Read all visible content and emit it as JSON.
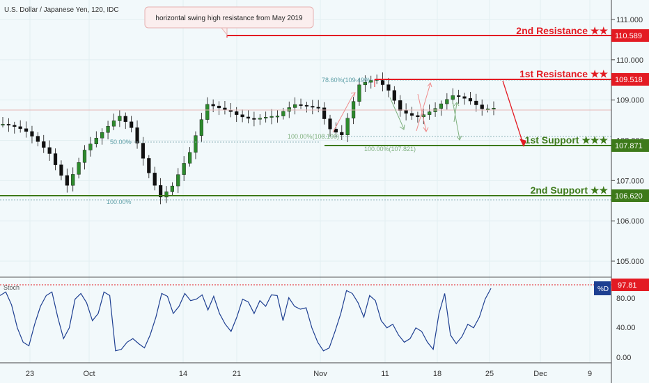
{
  "header": {
    "symbol": "U.S. Dollar / Japanese Yen, 120, IDC"
  },
  "annotation": {
    "text": "horizontal swing high resistance from May 2019"
  },
  "colors": {
    "resistance": "#e31b23",
    "support": "#3d7a1a",
    "candle": "#111111",
    "stoch_line": "#1e3f91",
    "fib": "#5fa0a8"
  },
  "levels": [
    {
      "name": "2nd Resistance ★★",
      "value": "110.589",
      "kind": "resistance"
    },
    {
      "name": "1st Resistance ★★",
      "value": "109.518",
      "kind": "resistance"
    },
    {
      "name": "1st Support ★★★",
      "value": "107.871",
      "kind": "support"
    },
    {
      "name": "2nd Support ★★",
      "value": "106.620",
      "kind": "support"
    }
  ],
  "fib_labels": {
    "f786": "78.60%(109.499)",
    "f50": "50.00%",
    "f100a": "100.00%",
    "f100b": "100.00%(108.100)",
    "f100c": "100.00%(107.821)"
  },
  "stoch": {
    "title": "Stoch",
    "legend": "%D",
    "current": "97.81",
    "yticks": [
      "80.00",
      "40.00",
      "0.00"
    ]
  },
  "chart_data": [
    {
      "type": "candlestick",
      "title": "U.S. Dollar / Japanese Yen, 120, IDC",
      "yticks": [
        "111.000",
        "110.000",
        "109.000",
        "108.000",
        "107.000",
        "106.000",
        "105.000"
      ],
      "ylim": [
        104.6,
        111.5
      ],
      "xlabels": [
        "23",
        "Oct",
        "14",
        "21",
        "Nov",
        "11",
        "18",
        "25",
        "Dec",
        "9"
      ],
      "close_path": [
        [
          0,
          108.4
        ],
        [
          4,
          108.1
        ],
        [
          8,
          107.7
        ],
        [
          11,
          107.0
        ],
        [
          14,
          107.8
        ],
        [
          17,
          108.1
        ],
        [
          20,
          108.5
        ],
        [
          22,
          108.3
        ],
        [
          25,
          107.3
        ],
        [
          27,
          106.7
        ],
        [
          29,
          106.9
        ],
        [
          32,
          107.6
        ],
        [
          35,
          108.8
        ],
        [
          39,
          108.8
        ],
        [
          43,
          108.6
        ],
        [
          47,
          108.5
        ],
        [
          50,
          108.8
        ],
        [
          54,
          108.9
        ],
        [
          56,
          108.4
        ],
        [
          58,
          108.2
        ],
        [
          61,
          109.3
        ],
        [
          64,
          109.4
        ],
        [
          66,
          109.2
        ],
        [
          68,
          108.8
        ],
        [
          71,
          108.7
        ],
        [
          74,
          108.8
        ],
        [
          77,
          109.0
        ],
        [
          80,
          108.9
        ],
        [
          82,
          108.8
        ],
        [
          84,
          108.9
        ]
      ],
      "grid": true
    },
    {
      "type": "line",
      "title": "Stoch",
      "series": [
        {
          "name": "%D",
          "values": [
            85,
            90,
            72,
            40,
            20,
            15,
            45,
            70,
            85,
            90,
            55,
            25,
            40,
            80,
            88,
            75,
            50,
            60,
            90,
            85,
            8,
            10,
            20,
            25,
            18,
            12,
            30,
            55,
            88,
            84,
            60,
            70,
            88,
            78,
            80,
            86,
            65,
            84,
            60,
            45,
            35,
            55,
            80,
            76,
            60,
            78,
            70,
            86,
            85,
            50,
            82,
            70,
            66,
            68,
            40,
            20,
            8,
            12,
            35,
            60,
            92,
            88,
            75,
            55,
            85,
            78,
            50,
            40,
            45,
            30,
            20,
            25,
            40,
            35,
            20,
            10,
            60,
            88,
            30,
            18,
            28,
            45,
            40,
            55,
            80,
            95
          ]
        }
      ],
      "ylim": [
        0,
        100
      ],
      "yticks": [
        "80.00",
        "40.00",
        "0.00"
      ]
    }
  ]
}
